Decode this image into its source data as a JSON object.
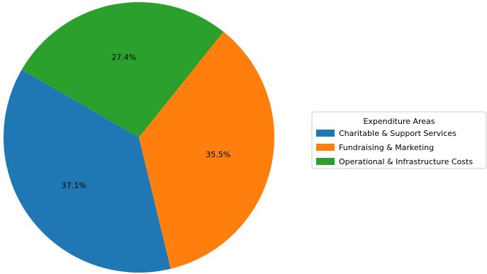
{
  "chart_data": {
    "type": "pie",
    "title": "",
    "categories": [
      "Charitable & Support Services",
      "Fundraising & Marketing",
      "Operational & Infrastructure Costs"
    ],
    "values": [
      37.1,
      35.5,
      27.4
    ],
    "labels": [
      "37.1%",
      "35.5%",
      "27.4%"
    ],
    "colors": [
      "#1f77b4",
      "#ff7f0e",
      "#2ca02c"
    ],
    "start_angle_deg": 150,
    "direction": "counterclockwise",
    "legend": {
      "title": "Expenditure Areas",
      "placement": "right"
    }
  }
}
